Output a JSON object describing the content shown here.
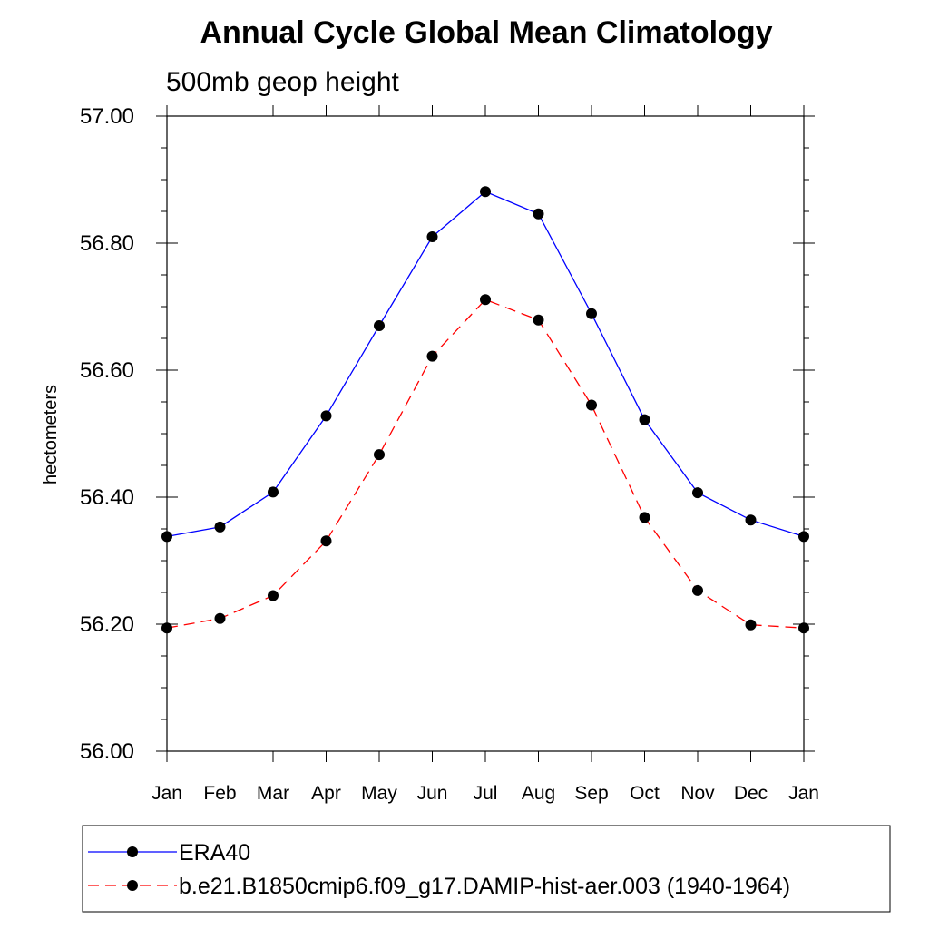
{
  "chart_data": {
    "type": "line",
    "title": "Annual Cycle Global Mean Climatology",
    "subtitle": "500mb geop height",
    "xlabel": "",
    "ylabel": "hectometers",
    "categories": [
      "Jan",
      "Feb",
      "Mar",
      "Apr",
      "May",
      "Jun",
      "Jul",
      "Aug",
      "Sep",
      "Oct",
      "Nov",
      "Dec",
      "Jan"
    ],
    "ylim": [
      56.0,
      57.0
    ],
    "yticks": [
      "56.00",
      "56.20",
      "56.40",
      "56.60",
      "56.80",
      "57.00"
    ],
    "series": [
      {
        "name": "ERA40",
        "color": "#0000ff",
        "dash": "solid",
        "values": [
          56.338,
          56.353,
          56.408,
          56.528,
          56.67,
          56.81,
          56.881,
          56.846,
          56.689,
          56.522,
          56.407,
          56.364,
          56.338
        ]
      },
      {
        "name": "b.e21.B1850cmip6.f09_g17.DAMIP-hist-aer.003 (1940-1964)",
        "color": "#ff0000",
        "dash": "dashed",
        "values": [
          56.194,
          56.209,
          56.245,
          56.331,
          56.467,
          56.622,
          56.711,
          56.679,
          56.545,
          56.368,
          56.253,
          56.199,
          56.194
        ]
      }
    ],
    "legend": "bottom"
  }
}
